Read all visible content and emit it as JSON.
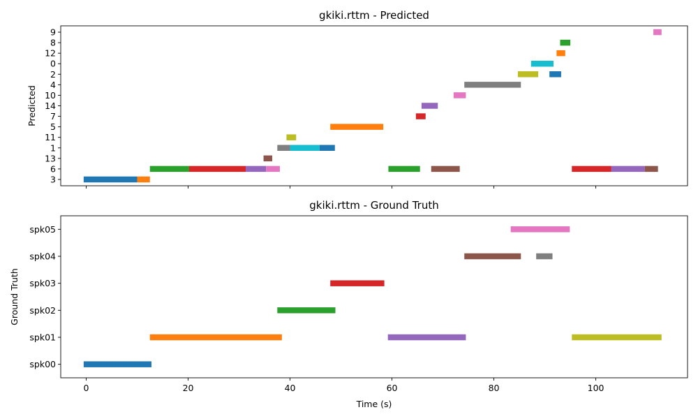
{
  "chart_data": [
    {
      "type": "timeline",
      "title": "gkiki.rttm - Predicted",
      "xlabel": "",
      "ylabel": "Predicted",
      "xlim": [
        -5,
        118
      ],
      "xticks": [
        0,
        20,
        40,
        60,
        80,
        100
      ],
      "show_xtick_labels": false,
      "grid": false,
      "categories": [
        "3",
        "6",
        "13",
        "1",
        "11",
        "5",
        "7",
        "14",
        "10",
        "4",
        "2",
        "0",
        "12",
        "8",
        "9"
      ],
      "segments": [
        {
          "label": "3",
          "start": -0.5,
          "end": 10.0,
          "color": "#1f77b4"
        },
        {
          "label": "3",
          "start": 10.0,
          "end": 12.5,
          "color": "#ff7f0e"
        },
        {
          "label": "6",
          "start": 12.5,
          "end": 20.2,
          "color": "#2ca02c"
        },
        {
          "label": "6",
          "start": 20.2,
          "end": 31.3,
          "color": "#d62728"
        },
        {
          "label": "6",
          "start": 31.3,
          "end": 35.3,
          "color": "#9467bd"
        },
        {
          "label": "6",
          "start": 35.3,
          "end": 38.0,
          "color": "#e377c2"
        },
        {
          "label": "13",
          "start": 34.8,
          "end": 36.5,
          "color": "#8c564b"
        },
        {
          "label": "1",
          "start": 37.5,
          "end": 40.0,
          "color": "#7f7f7f"
        },
        {
          "label": "1",
          "start": 40.0,
          "end": 45.8,
          "color": "#17becf"
        },
        {
          "label": "1",
          "start": 45.8,
          "end": 48.8,
          "color": "#1f77b4"
        },
        {
          "label": "11",
          "start": 39.3,
          "end": 41.2,
          "color": "#bcbd22"
        },
        {
          "label": "5",
          "start": 47.9,
          "end": 58.3,
          "color": "#ff7f0e"
        },
        {
          "label": "6",
          "start": 59.3,
          "end": 65.5,
          "color": "#2ca02c"
        },
        {
          "label": "7",
          "start": 64.7,
          "end": 66.6,
          "color": "#d62728"
        },
        {
          "label": "14",
          "start": 65.8,
          "end": 69.0,
          "color": "#9467bd"
        },
        {
          "label": "6",
          "start": 67.7,
          "end": 73.3,
          "color": "#8c564b"
        },
        {
          "label": "10",
          "start": 72.1,
          "end": 74.5,
          "color": "#e377c2"
        },
        {
          "label": "4",
          "start": 74.2,
          "end": 85.3,
          "color": "#7f7f7f"
        },
        {
          "label": "2",
          "start": 84.7,
          "end": 88.7,
          "color": "#bcbd22"
        },
        {
          "label": "0",
          "start": 87.3,
          "end": 91.7,
          "color": "#17becf"
        },
        {
          "label": "2",
          "start": 90.9,
          "end": 93.2,
          "color": "#1f77b4"
        },
        {
          "label": "12",
          "start": 92.3,
          "end": 94.0,
          "color": "#ff7f0e"
        },
        {
          "label": "8",
          "start": 93.0,
          "end": 95.0,
          "color": "#2ca02c"
        },
        {
          "label": "6",
          "start": 95.3,
          "end": 103.0,
          "color": "#d62728"
        },
        {
          "label": "6",
          "start": 103.0,
          "end": 109.6,
          "color": "#9467bd"
        },
        {
          "label": "6",
          "start": 109.6,
          "end": 112.2,
          "color": "#8c564b"
        },
        {
          "label": "9",
          "start": 111.3,
          "end": 112.9,
          "color": "#e377c2"
        }
      ]
    },
    {
      "type": "timeline",
      "title": "gkiki.rttm - Ground Truth",
      "xlabel": "Time (s)",
      "ylabel": "Ground Truth",
      "xlim": [
        -5,
        118
      ],
      "xticks": [
        0,
        20,
        40,
        60,
        80,
        100
      ],
      "show_xtick_labels": true,
      "grid": false,
      "categories": [
        "spk00",
        "spk01",
        "spk02",
        "spk03",
        "spk04",
        "spk05"
      ],
      "segments": [
        {
          "label": "spk00",
          "start": -0.5,
          "end": 12.8,
          "color": "#1f77b4"
        },
        {
          "label": "spk01",
          "start": 12.5,
          "end": 38.4,
          "color": "#ff7f0e"
        },
        {
          "label": "spk02",
          "start": 37.5,
          "end": 48.9,
          "color": "#2ca02c"
        },
        {
          "label": "spk03",
          "start": 47.9,
          "end": 58.5,
          "color": "#d62728"
        },
        {
          "label": "spk01",
          "start": 59.2,
          "end": 74.5,
          "color": "#9467bd"
        },
        {
          "label": "spk04",
          "start": 74.2,
          "end": 85.3,
          "color": "#8c564b"
        },
        {
          "label": "spk04",
          "start": 88.3,
          "end": 91.5,
          "color": "#7f7f7f"
        },
        {
          "label": "spk05",
          "start": 83.3,
          "end": 94.9,
          "color": "#e377c2"
        },
        {
          "label": "spk01",
          "start": 95.3,
          "end": 112.9,
          "color": "#bcbd22"
        }
      ]
    }
  ]
}
